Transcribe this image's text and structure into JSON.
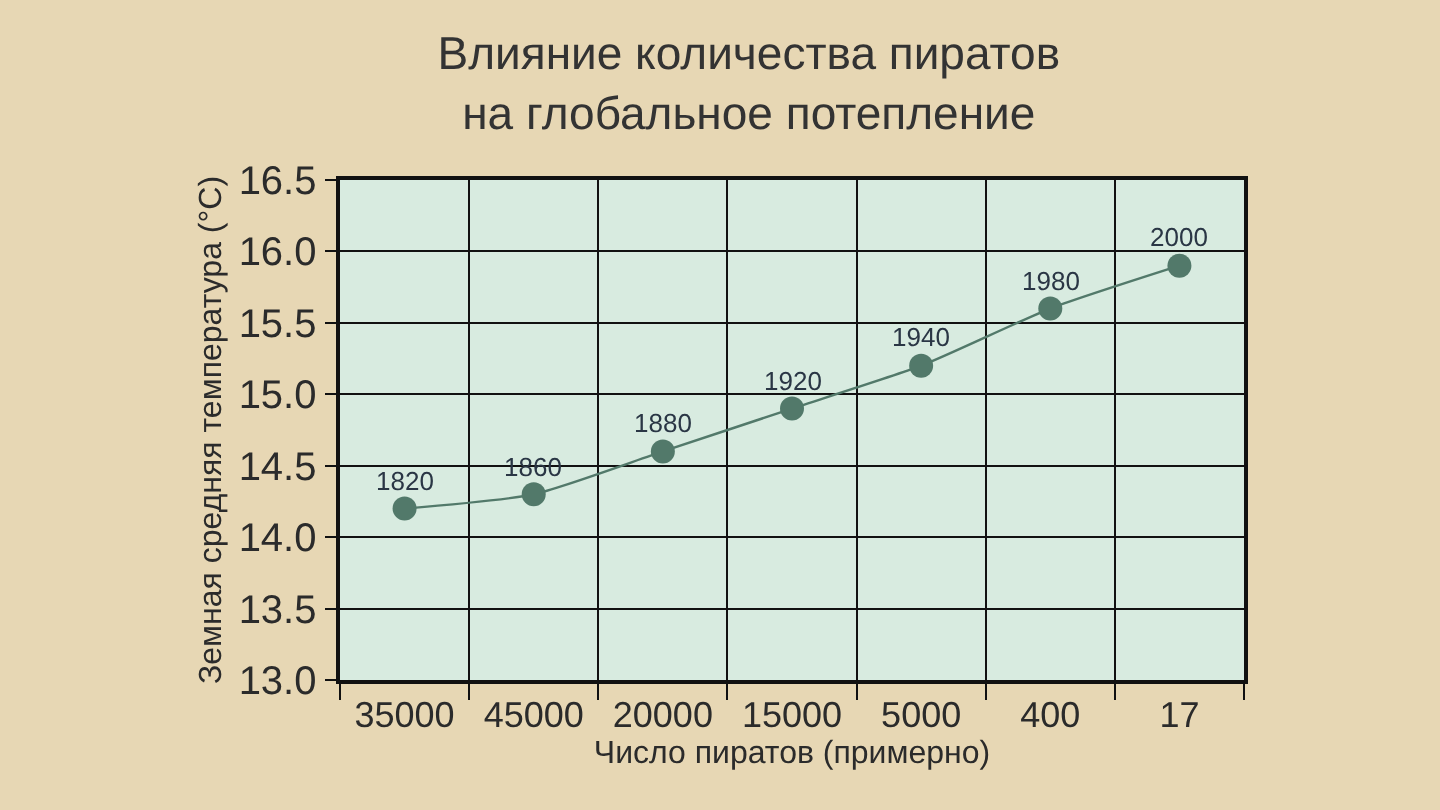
{
  "chart_data": {
    "type": "line",
    "title": "Влияние количества пиратов\nна глобальное потепление",
    "xlabel": "Число пиратов (примерно)",
    "ylabel": "Земная средняя температура (°C)",
    "categories": [
      "35000",
      "45000",
      "20000",
      "15000",
      "5000",
      "400",
      "17"
    ],
    "series": [
      {
        "color": "#52796a",
        "values": [
          14.2,
          14.3,
          14.6,
          14.9,
          15.2,
          15.6,
          15.9
        ]
      }
    ],
    "annotations": [
      {
        "text": "1820",
        "x": "35000",
        "y": 14.2
      },
      {
        "text": "1860",
        "x": "45000",
        "y": 14.3
      },
      {
        "text": "1880",
        "x": "20000",
        "y": 14.6
      },
      {
        "text": "1920",
        "x": "15000",
        "y": 14.9
      },
      {
        "text": "1940",
        "x": "5000",
        "y": 15.2
      },
      {
        "text": "1980",
        "x": "400",
        "y": 15.6
      },
      {
        "text": "2000",
        "x": "17",
        "y": 15.9
      }
    ],
    "ylim": [
      13.0,
      16.5
    ],
    "yticks": [
      {
        "value": 13.0,
        "label": "13.0"
      },
      {
        "value": 13.5,
        "label": "13.5"
      },
      {
        "value": 14.0,
        "label": "14.0"
      },
      {
        "value": 14.5,
        "label": "14.5"
      },
      {
        "value": 15.0,
        "label": "15.0"
      },
      {
        "value": 15.5,
        "label": "15.5"
      },
      {
        "value": 16.0,
        "label": "16.0"
      },
      {
        "value": 16.5,
        "label": "16.5"
      }
    ],
    "grid": true,
    "marker": "circle",
    "line_style": "solid"
  }
}
